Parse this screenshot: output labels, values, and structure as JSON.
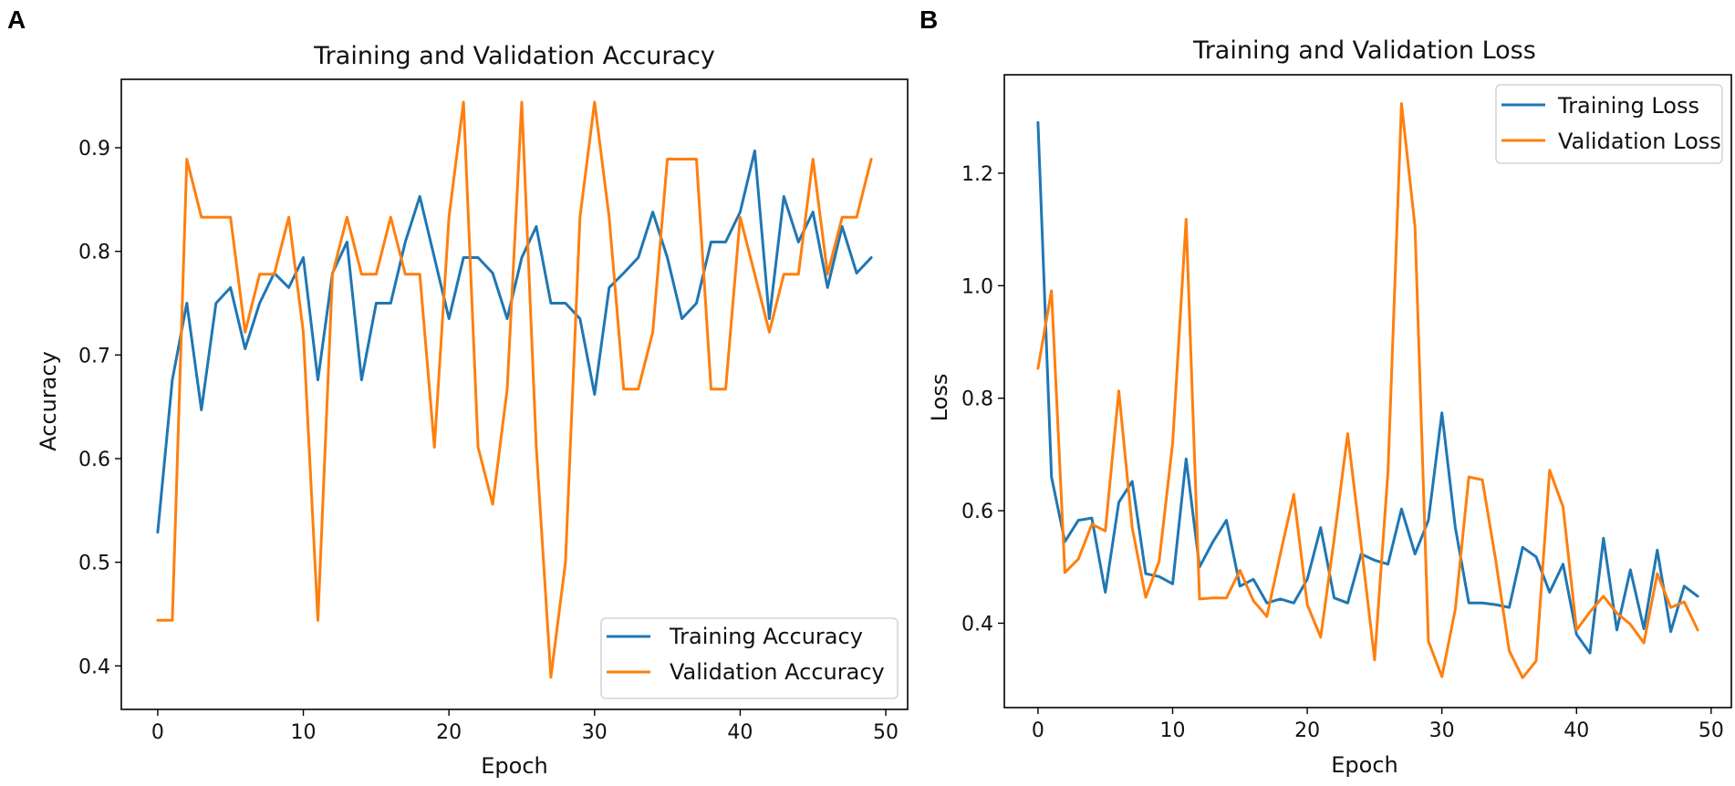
{
  "colors": {
    "training": "#1f77b4",
    "validation": "#ff7f0e"
  },
  "chart_data": [
    {
      "panel": "A",
      "type": "line",
      "title": "Training and Validation Accuracy",
      "xlabel": "Epoch",
      "ylabel": "Accuracy",
      "xlim": [
        -2.5,
        51.5
      ],
      "ylim": [
        0.358,
        0.966
      ],
      "xticks": [
        0,
        10,
        20,
        30,
        40,
        50
      ],
      "xtick_labels": [
        "0",
        "10",
        "20",
        "30",
        "40",
        "50"
      ],
      "yticks": [
        0.4,
        0.5,
        0.6,
        0.7,
        0.8,
        0.9
      ],
      "ytick_labels": [
        "0.4",
        "0.5",
        "0.6",
        "0.7",
        "0.8",
        "0.9"
      ],
      "legend_position": "lower-right",
      "x": [
        0,
        1,
        2,
        3,
        4,
        5,
        6,
        7,
        8,
        9,
        10,
        11,
        12,
        13,
        14,
        15,
        16,
        17,
        18,
        19,
        20,
        21,
        22,
        23,
        24,
        25,
        26,
        27,
        28,
        29,
        30,
        31,
        32,
        33,
        34,
        35,
        36,
        37,
        38,
        39,
        40,
        41,
        42,
        43,
        44,
        45,
        46,
        47,
        48,
        49
      ],
      "series": [
        {
          "name": "Training Accuracy",
          "color": "#1f77b4",
          "values": [
            0.529,
            0.676,
            0.75,
            0.647,
            0.75,
            0.765,
            0.706,
            0.75,
            0.779,
            0.765,
            0.794,
            0.676,
            0.779,
            0.809,
            0.676,
            0.75,
            0.75,
            0.809,
            0.853,
            0.794,
            0.735,
            0.794,
            0.794,
            0.779,
            0.735,
            0.794,
            0.824,
            0.75,
            0.75,
            0.735,
            0.662,
            0.765,
            0.779,
            0.794,
            0.838,
            0.794,
            0.735,
            0.75,
            0.809,
            0.809,
            0.838,
            0.897,
            0.735,
            0.853,
            0.809,
            0.838,
            0.765,
            0.824,
            0.779,
            0.794
          ]
        },
        {
          "name": "Validation Accuracy",
          "color": "#ff7f0e",
          "values": [
            0.444,
            0.444,
            0.889,
            0.833,
            0.833,
            0.833,
            0.722,
            0.778,
            0.778,
            0.833,
            0.722,
            0.444,
            0.778,
            0.833,
            0.778,
            0.778,
            0.833,
            0.778,
            0.778,
            0.611,
            0.833,
            0.944,
            0.611,
            0.556,
            0.667,
            0.944,
            0.611,
            0.389,
            0.5,
            0.833,
            0.944,
            0.833,
            0.667,
            0.667,
            0.722,
            0.889,
            0.889,
            0.889,
            0.667,
            0.667,
            0.833,
            0.778,
            0.722,
            0.778,
            0.778,
            0.889,
            0.778,
            0.833,
            0.833,
            0.889
          ]
        }
      ]
    },
    {
      "panel": "B",
      "type": "line",
      "title": "Training and Validation Loss",
      "xlabel": "Epoch",
      "ylabel": "Loss",
      "xlim": [
        -2.5,
        51.5
      ],
      "ylim": [
        0.25,
        1.375
      ],
      "xticks": [
        0,
        10,
        20,
        30,
        40,
        50
      ],
      "xtick_labels": [
        "0",
        "10",
        "20",
        "30",
        "40",
        "50"
      ],
      "yticks": [
        0.4,
        0.6,
        0.8,
        1.0,
        1.2
      ],
      "ytick_labels": [
        "0.4",
        "0.6",
        "0.8",
        "1.0",
        "1.2"
      ],
      "legend_position": "upper-right",
      "x": [
        0,
        1,
        2,
        3,
        4,
        5,
        6,
        7,
        8,
        9,
        10,
        11,
        12,
        13,
        14,
        15,
        16,
        17,
        18,
        19,
        20,
        21,
        22,
        23,
        24,
        25,
        26,
        27,
        28,
        29,
        30,
        31,
        32,
        33,
        34,
        35,
        36,
        37,
        38,
        39,
        40,
        41,
        42,
        43,
        44,
        45,
        46,
        47,
        48,
        49
      ],
      "series": [
        {
          "name": "Training Loss",
          "color": "#1f77b4",
          "values": [
            1.29,
            0.66,
            0.545,
            0.583,
            0.587,
            0.455,
            0.615,
            0.652,
            0.488,
            0.483,
            0.47,
            0.692,
            0.5,
            0.545,
            0.583,
            0.466,
            0.478,
            0.436,
            0.443,
            0.436,
            0.478,
            0.57,
            0.445,
            0.436,
            0.523,
            0.512,
            0.505,
            0.603,
            0.523,
            0.583,
            0.774,
            0.57,
            0.436,
            0.436,
            0.433,
            0.428,
            0.535,
            0.518,
            0.455,
            0.505,
            0.38,
            0.347,
            0.551,
            0.388,
            0.495,
            0.39,
            0.53,
            0.385,
            0.466,
            0.448
          ]
        },
        {
          "name": "Validation Loss",
          "color": "#ff7f0e",
          "values": [
            0.853,
            0.991,
            0.49,
            0.514,
            0.576,
            0.564,
            0.813,
            0.57,
            0.446,
            0.51,
            0.72,
            1.118,
            0.443,
            0.445,
            0.445,
            0.494,
            0.44,
            0.412,
            0.523,
            0.629,
            0.433,
            0.375,
            0.55,
            0.737,
            0.54,
            0.335,
            0.67,
            1.324,
            1.105,
            0.368,
            0.305,
            0.425,
            0.66,
            0.655,
            0.512,
            0.351,
            0.303,
            0.333,
            0.672,
            0.607,
            0.388,
            0.42,
            0.448,
            0.418,
            0.398,
            0.365,
            0.488,
            0.428,
            0.438,
            0.388
          ]
        }
      ]
    }
  ]
}
